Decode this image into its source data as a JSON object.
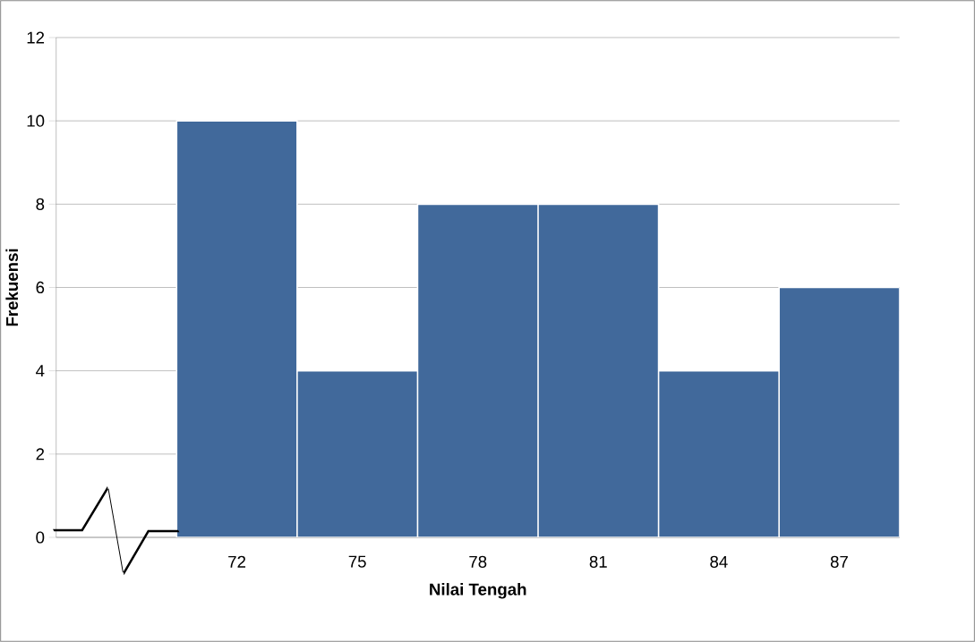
{
  "chart_data": {
    "type": "bar",
    "categories": [
      null,
      "72",
      "75",
      "78",
      "81",
      "84",
      "87"
    ],
    "values": [
      null,
      10,
      4,
      8,
      8,
      4,
      6
    ],
    "color": "#41699b",
    "xlabel": "Nilai Tengah",
    "ylabel": "Frekuensi",
    "ylim": [
      0,
      12
    ],
    "yticks": [
      0,
      2,
      4,
      6,
      8,
      10,
      12
    ],
    "grid": "y"
  }
}
